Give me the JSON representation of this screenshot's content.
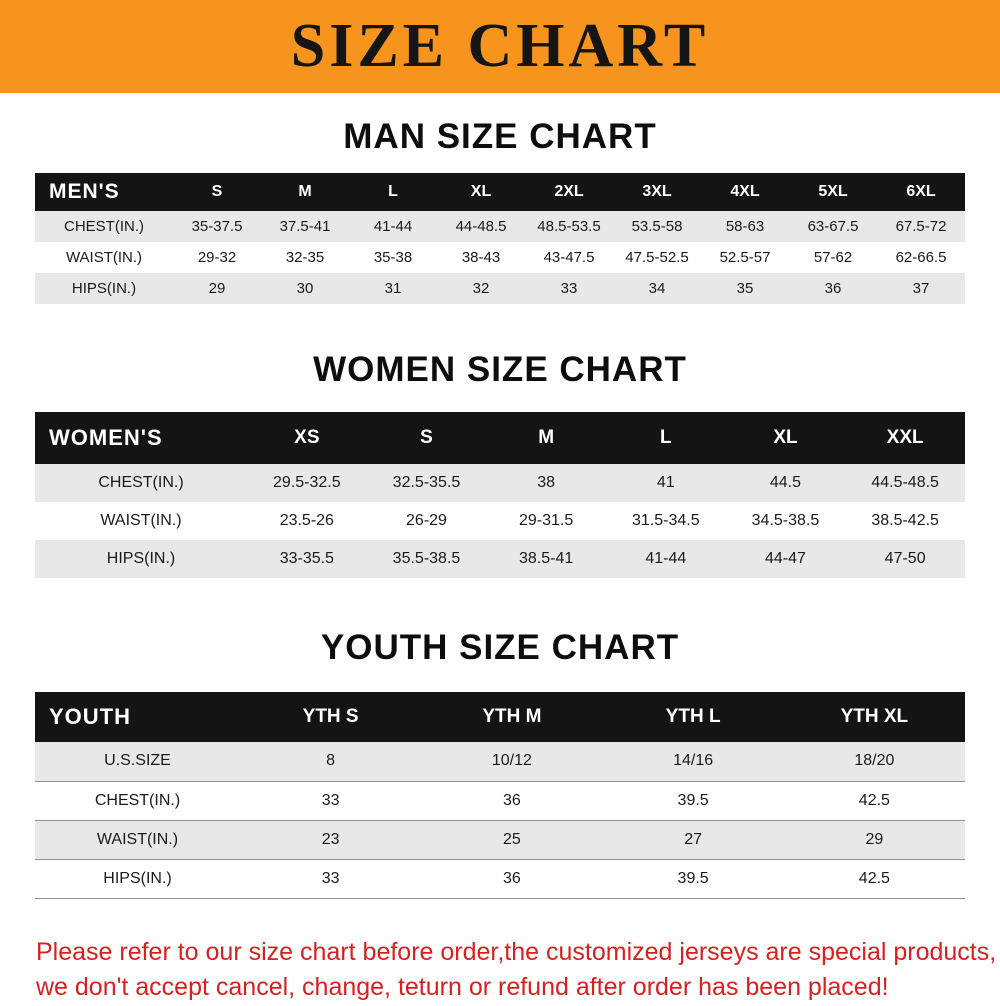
{
  "banner": {
    "title": "SIZE CHART",
    "bg_color": "#f7941e",
    "text_color": "#151515"
  },
  "chart_data": [
    {
      "type": "table",
      "title": "MAN SIZE CHART",
      "header": [
        "MEN'S",
        "S",
        "M",
        "L",
        "XL",
        "2XL",
        "3XL",
        "4XL",
        "5XL",
        "6XL"
      ],
      "rows": [
        [
          "CHEST(IN.)",
          "35-37.5",
          "37.5-41",
          "41-44",
          "44-48.5",
          "48.5-53.5",
          "53.5-58",
          "58-63",
          "63-67.5",
          "67.5-72"
        ],
        [
          "WAIST(IN.)",
          "29-32",
          "32-35",
          "35-38",
          "38-43",
          "43-47.5",
          "47.5-52.5",
          "52.5-57",
          "57-62",
          "62-66.5"
        ],
        [
          "HIPS(IN.)",
          "29",
          "30",
          "31",
          "32",
          "33",
          "34",
          "35",
          "36",
          "37"
        ]
      ],
      "header_bg": "#141414",
      "stripe_bg": "#e8e8e8"
    },
    {
      "type": "table",
      "title": "WOMEN SIZE CHART",
      "header": [
        "WOMEN'S",
        "XS",
        "S",
        "M",
        "L",
        "XL",
        "XXL"
      ],
      "rows": [
        [
          "CHEST(IN.)",
          "29.5-32.5",
          "32.5-35.5",
          "38",
          "41",
          "44.5",
          "44.5-48.5"
        ],
        [
          "WAIST(IN.)",
          "23.5-26",
          "26-29",
          "29-31.5",
          "31.5-34.5",
          "34.5-38.5",
          "38.5-42.5"
        ],
        [
          "HIPS(IN.)",
          "33-35.5",
          "35.5-38.5",
          "38.5-41",
          "41-44",
          "44-47",
          "47-50"
        ]
      ],
      "header_bg": "#141414",
      "stripe_bg": "#e8e8e8"
    },
    {
      "type": "table",
      "title": "YOUTH SIZE CHART",
      "header": [
        "YOUTH",
        "YTH S",
        "YTH M",
        "YTH L",
        "YTH XL"
      ],
      "rows": [
        [
          "U.S.SIZE",
          "8",
          "10/12",
          "14/16",
          "18/20"
        ],
        [
          "CHEST(IN.)",
          "33",
          "36",
          "39.5",
          "42.5"
        ],
        [
          "WAIST(IN.)",
          "23",
          "25",
          "27",
          "29"
        ],
        [
          "HIPS(IN.)",
          "33",
          "36",
          "39.5",
          "42.5"
        ]
      ],
      "header_bg": "#141414",
      "stripe_bg": "#e8e8e8"
    }
  ],
  "footer": {
    "line1": "Please refer to our size chart before order,the customized jerseys are special products,",
    "line2": "we don't accept cancel, change, teturn or refund after order has been placed!",
    "text_color": "#da1f1f"
  }
}
